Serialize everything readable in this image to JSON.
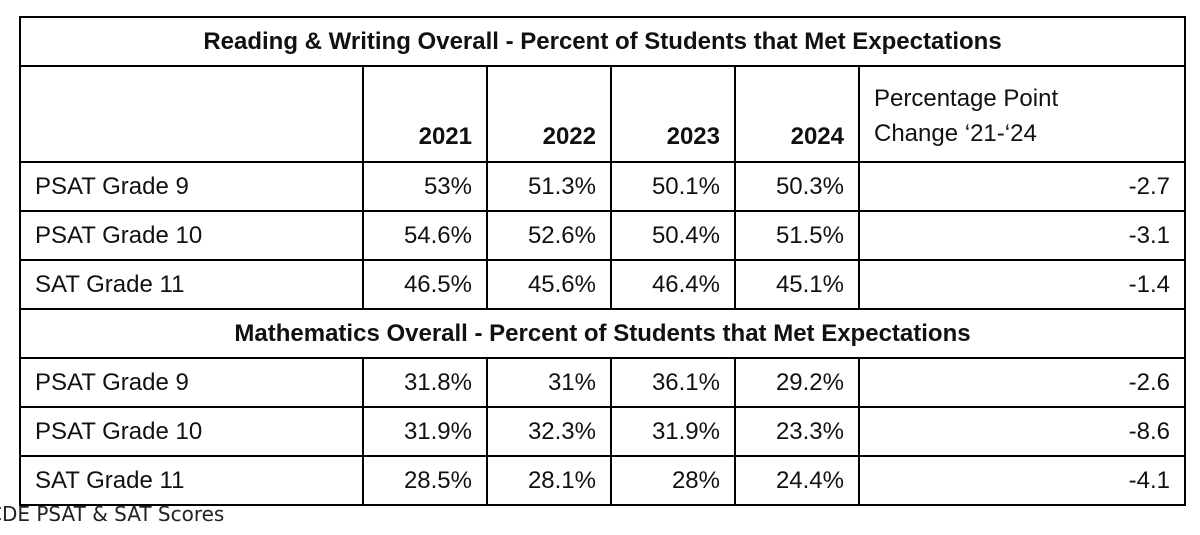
{
  "reading_writing": {
    "title": "Reading & Writing Overall - Percent of Students that Met Expectations",
    "rows": [
      {
        "label": "PSAT Grade 9",
        "values": [
          "53%",
          "51.3%",
          "50.1%",
          "50.3%"
        ],
        "change": "-2.7"
      },
      {
        "label": "PSAT Grade 10",
        "values": [
          "54.6%",
          "52.6%",
          "50.4%",
          "51.5%"
        ],
        "change": "-3.1"
      },
      {
        "label": "SAT Grade 11",
        "values": [
          "46.5%",
          "45.6%",
          "46.4%",
          "45.1%"
        ],
        "change": "-1.4"
      }
    ]
  },
  "header": {
    "years": [
      "2021",
      "2022",
      "2023",
      "2024"
    ],
    "change_label_line1": "Percentage Point",
    "change_label_line2": "Change ‘21-‘24"
  },
  "mathematics": {
    "title": "Mathematics Overall - Percent of Students that Met Expectations",
    "rows": [
      {
        "label": "PSAT Grade 9",
        "values": [
          "31.8%",
          "31%",
          "36.1%",
          "29.2%"
        ],
        "change": "-2.6"
      },
      {
        "label": "PSAT Grade 10",
        "values": [
          "31.9%",
          "32.3%",
          "31.9%",
          "23.3%"
        ],
        "change": "-8.6"
      },
      {
        "label": "SAT Grade 11",
        "values": [
          "28.5%",
          "28.1%",
          "28%",
          "24.4%"
        ],
        "change": "-4.1"
      }
    ]
  },
  "footer": {
    "source": "CDE PSAT & SAT Scores"
  }
}
